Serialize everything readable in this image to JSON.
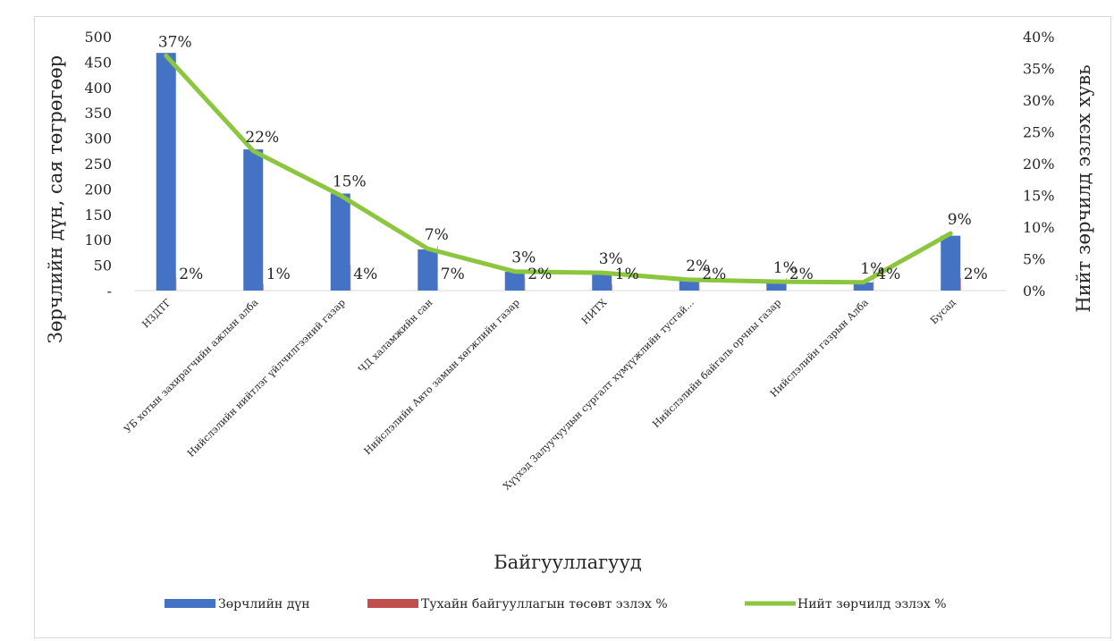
{
  "chart_data": {
    "type": "bar",
    "title": "",
    "xlabel": "Байгууллагууд",
    "ylabel": "Зөрчлийн дүн, сая төгрөгөөр",
    "y2label": "Нийт зөрчилд эзлэх хувь",
    "ylim": [
      0,
      500
    ],
    "y2lim": [
      0,
      0.4
    ],
    "y_ticks": [
      "-",
      "50",
      "100",
      "150",
      "200",
      "250",
      "300",
      "350",
      "400",
      "450",
      "500"
    ],
    "y2_ticks": [
      "0%",
      "5%",
      "10%",
      "15%",
      "20%",
      "25%",
      "30%",
      "35%",
      "40%"
    ],
    "categories": [
      "НЗДТГ",
      "УБ хотын захирагчийн ажлын алба",
      "Нийслэлийн нийтлэг үйлчилгээний газар",
      "ЧД халамжийн сан",
      "Нийслэлийн Авто замын хөгжлийн газар",
      "НИТХ",
      "Хүүхэд Залуучуудын сургалт хүмүүжлийн тусгай...",
      "Нийслэлийн байгаль орчны газар",
      "Нийслэлийн газрын Алба",
      "Бусад"
    ],
    "grid": false,
    "legend_position": "bottom",
    "series": [
      {
        "name": "Зөрчлийн дүн",
        "type": "bar",
        "axis": "left",
        "color": "#4472c4",
        "values": [
          468,
          278,
          191,
          81,
          37,
          35,
          21,
          17,
          16,
          108
        ]
      },
      {
        "name": "Тухайн байгууллагын төсөвт эзлэх %",
        "type": "bar",
        "axis": "right",
        "color": "#c0504d",
        "values": [
          0.02,
          0.01,
          0.04,
          0.07,
          0.02,
          0.01,
          0.02,
          0.02,
          0.04,
          0.02
        ],
        "labels": [
          "2%",
          "1%",
          "4%",
          "7%",
          "2%",
          "1%",
          "2%",
          "2%",
          "4%",
          "2%"
        ]
      },
      {
        "name": "Нийт зөрчилд эзлэх %",
        "type": "line",
        "axis": "right",
        "color": "#8cc63f",
        "values": [
          0.37,
          0.22,
          0.15,
          0.066,
          0.03,
          0.028,
          0.017,
          0.014,
          0.013,
          0.09
        ],
        "labels": [
          "37%",
          "22%",
          "15%",
          "7%",
          "3%",
          "3%",
          "2%",
          "1%",
          "1%",
          "9%"
        ]
      }
    ]
  }
}
